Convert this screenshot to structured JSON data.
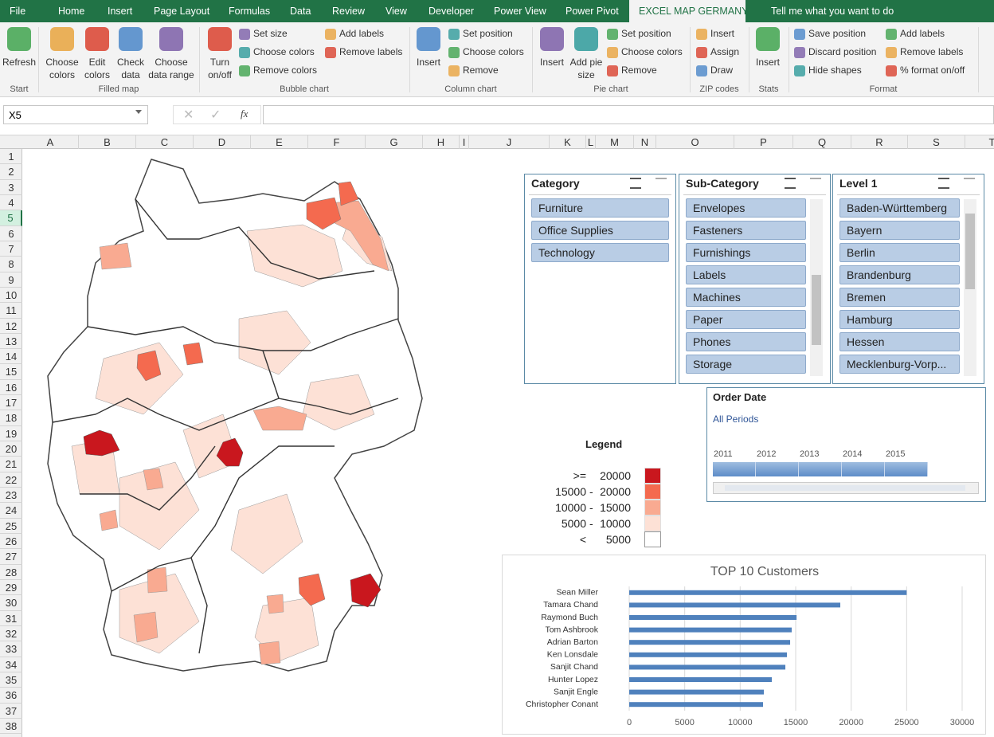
{
  "ribbon": {
    "tabs": [
      "File",
      "Home",
      "Insert",
      "Page Layout",
      "Formulas",
      "Data",
      "Review",
      "View",
      "Developer",
      "Power View",
      "Power Pivot",
      "EXCEL MAP GERMANY",
      "Tell me what you want to do"
    ],
    "groups": [
      {
        "label": "Start",
        "large": [
          "Refresh"
        ],
        "small": []
      },
      {
        "label": "Filled map",
        "large": [
          "Choose colors",
          "Edit colors",
          "Check data",
          "Choose data range"
        ],
        "small": []
      },
      {
        "label": "Bubble chart",
        "large": [
          "Turn on/off"
        ],
        "small": [
          "Set size",
          "Choose colors",
          "Remove colors",
          "Add labels",
          "Remove labels"
        ]
      },
      {
        "label": "Column chart",
        "large": [
          "Insert"
        ],
        "small": [
          "Set position",
          "Choose colors",
          "Remove"
        ]
      },
      {
        "label": "Pie chart",
        "large": [
          "Insert",
          "Add pie size"
        ],
        "small": [
          "Set position",
          "Choose colors",
          "Remove"
        ]
      },
      {
        "label": "ZIP codes",
        "large": [],
        "small": [
          "Insert",
          "Assign",
          "Draw"
        ]
      },
      {
        "label": "Stats",
        "large": [
          "Insert"
        ],
        "small": []
      },
      {
        "label": "Format",
        "large": [],
        "small": [
          "Save position",
          "Discard position",
          "Hide shapes",
          "Add labels",
          "Remove labels",
          "% format on/off"
        ]
      }
    ]
  },
  "formula_bar": {
    "name_box": "X5",
    "fx": "fx"
  },
  "sheet": {
    "columns": [
      "A",
      "B",
      "C",
      "D",
      "E",
      "F",
      "G",
      "H",
      "I",
      "J",
      "K",
      "L",
      "M",
      "N",
      "O",
      "P",
      "Q",
      "R",
      "S",
      "T"
    ],
    "rows": [
      1,
      2,
      3,
      4,
      5,
      6,
      7,
      8,
      9,
      10,
      11,
      12,
      13,
      14,
      15,
      16,
      17,
      18,
      19,
      20,
      21,
      22,
      23,
      24,
      25,
      26,
      27,
      28,
      29,
      30,
      31,
      32,
      33,
      34,
      35,
      36,
      37,
      38
    ]
  },
  "slicers": [
    {
      "title": "Category",
      "items": [
        "Furniture",
        "Office Supplies",
        "Technology"
      ]
    },
    {
      "title": "Sub-Category",
      "items": [
        "Envelopes",
        "Fasteners",
        "Furnishings",
        "Labels",
        "Machines",
        "Paper",
        "Phones",
        "Storage"
      ]
    },
    {
      "title": "Level 1",
      "items": [
        "Baden-Württemberg",
        "Bayern",
        "Berlin",
        "Brandenburg",
        "Bremen",
        "Hamburg",
        "Hessen",
        "Mecklenburg-Vorp..."
      ]
    }
  ],
  "timeline": {
    "title": "Order Date",
    "period": "All Periods",
    "years": [
      2011,
      2012,
      2013,
      2014,
      2015
    ]
  },
  "legend": {
    "title": "Legend",
    "rows": [
      {
        "left": ">=",
        "right": 20000,
        "color": "#c9171e"
      },
      {
        "left": 15000,
        "sep": "-",
        "right": 20000,
        "color": "#f46a4f"
      },
      {
        "left": 10000,
        "sep": "-",
        "right": 15000,
        "color": "#f9aa91"
      },
      {
        "left": 5000,
        "sep": "-",
        "right": 10000,
        "color": "#fde1d6"
      },
      {
        "left": "<",
        "right": 5000,
        "color": "#ffffff"
      }
    ]
  },
  "chart_data": {
    "type": "bar",
    "orientation": "horizontal",
    "title": "TOP 10 Customers",
    "categories": [
      "Sean Miller",
      "Tamara Chand",
      "Raymond Buch",
      "Tom Ashbrook",
      "Adrian Barton",
      "Ken Lonsdale",
      "Sanjit Chand",
      "Hunter Lopez",
      "Sanjit Engle",
      "Christopher Conant"
    ],
    "values": [
      25000,
      19020,
      15080,
      14640,
      14500,
      14210,
      14070,
      12850,
      12130,
      12060
    ],
    "color": "#4f81bd",
    "xlim": [
      0,
      30000
    ],
    "xticks": [
      0,
      5000,
      10000,
      15000,
      20000,
      25000,
      30000
    ],
    "grid": true
  }
}
